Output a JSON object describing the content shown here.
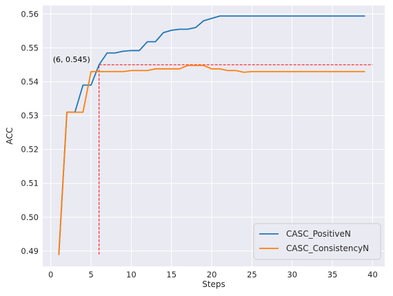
{
  "chart_data": {
    "type": "line",
    "xlabel": "Steps",
    "ylabel": "ACC",
    "xlim": [
      -1,
      41.5
    ],
    "ylim": [
      0.4855,
      0.5625
    ],
    "xticks": [
      0,
      5,
      10,
      15,
      20,
      25,
      30,
      35,
      40
    ],
    "yticks": [
      0.49,
      0.5,
      0.51,
      0.52,
      0.53,
      0.54,
      0.55,
      0.56
    ],
    "ytick_labels": [
      "0.49",
      "0.50",
      "0.51",
      "0.52",
      "0.53",
      "0.54",
      "0.55",
      "0.56"
    ],
    "grid": true,
    "legend_position": "lower-right",
    "series": [
      {
        "name": "CASC_PositiveN",
        "color": "#1f77b4",
        "x": [
          1,
          2,
          3,
          4,
          5,
          6,
          7,
          8,
          9,
          10,
          11,
          12,
          13,
          14,
          15,
          16,
          17,
          18,
          19,
          20,
          21,
          22,
          23,
          24,
          25,
          26,
          27,
          28,
          29,
          30,
          31,
          32,
          33,
          34,
          35,
          36,
          37,
          38,
          39
        ],
        "y": [
          0.489,
          0.531,
          0.531,
          0.539,
          0.539,
          0.545,
          0.5485,
          0.5485,
          0.549,
          0.5492,
          0.5492,
          0.5518,
          0.5518,
          0.5545,
          0.5552,
          0.5555,
          0.5555,
          0.556,
          0.558,
          0.5587,
          0.5594,
          0.5594,
          0.5594,
          0.5594,
          0.5594,
          0.5594,
          0.5594,
          0.5594,
          0.5594,
          0.5594,
          0.5594,
          0.5594,
          0.5594,
          0.5594,
          0.5594,
          0.5594,
          0.5594,
          0.5594,
          0.5594
        ]
      },
      {
        "name": "CASC_ConsistencyN",
        "color": "#ff7f0e",
        "x": [
          1,
          2,
          3,
          4,
          5,
          6,
          7,
          8,
          9,
          10,
          11,
          12,
          13,
          14,
          15,
          16,
          17,
          18,
          19,
          20,
          21,
          22,
          23,
          24,
          25,
          26,
          27,
          28,
          29,
          30,
          31,
          32,
          33,
          34,
          35,
          36,
          37,
          38,
          39
        ],
        "y": [
          0.489,
          0.531,
          0.531,
          0.531,
          0.543,
          0.543,
          0.543,
          0.543,
          0.543,
          0.5433,
          0.5433,
          0.5433,
          0.5438,
          0.5438,
          0.5438,
          0.5438,
          0.5448,
          0.5448,
          0.5448,
          0.5438,
          0.5438,
          0.5433,
          0.5433,
          0.5428,
          0.543,
          0.543,
          0.543,
          0.543,
          0.543,
          0.543,
          0.543,
          0.543,
          0.543,
          0.543,
          0.543,
          0.543,
          0.543,
          0.543,
          0.543
        ]
      }
    ],
    "reference_lines": {
      "horizontal_y": 0.545,
      "horizontal_x_range": [
        6,
        40
      ],
      "vertical_x": 6,
      "vertical_y_range": [
        0.489,
        0.545
      ],
      "color": "#ff0000"
    },
    "annotation": {
      "text": "(6, 0.545)",
      "x": 6,
      "y": 0.545
    }
  }
}
